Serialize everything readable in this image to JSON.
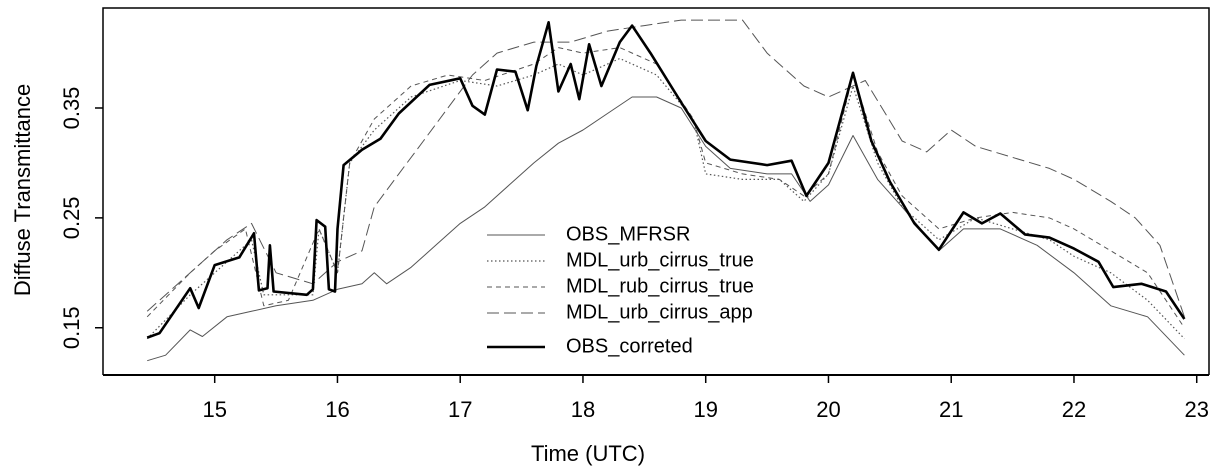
{
  "chart_data": {
    "type": "line",
    "xlabel": "Time (UTC)",
    "ylabel": "Diffuse Transmittance",
    "xlim": [
      14.09,
      23.1
    ],
    "ylim": [
      0.107,
      0.441
    ],
    "xticks": [
      15,
      16,
      17,
      18,
      19,
      20,
      21,
      22,
      23
    ],
    "yticks": [
      0.15,
      0.25,
      0.35
    ],
    "series": [
      {
        "name": "OBS_MFRSR",
        "color": "#555555",
        "linestyle": "solid",
        "x": [
          14.45,
          14.6,
          14.8,
          14.9,
          15.1,
          15.3,
          15.5,
          15.8,
          16.0,
          16.2,
          16.3,
          16.4,
          16.6,
          16.8,
          17.0,
          17.2,
          17.4,
          17.6,
          17.8,
          18.0,
          18.2,
          18.4,
          18.6,
          18.8,
          19.0,
          19.2,
          19.5,
          19.7,
          19.85,
          20.0,
          20.2,
          20.4,
          20.6,
          20.9,
          21.1,
          21.4,
          21.7,
          22.0,
          22.3,
          22.6,
          22.9
        ],
        "values": [
          0.12,
          0.125,
          0.148,
          0.142,
          0.16,
          0.165,
          0.17,
          0.175,
          0.185,
          0.19,
          0.2,
          0.19,
          0.205,
          0.225,
          0.245,
          0.26,
          0.28,
          0.3,
          0.318,
          0.33,
          0.345,
          0.36,
          0.36,
          0.35,
          0.315,
          0.295,
          0.29,
          0.29,
          0.265,
          0.28,
          0.325,
          0.285,
          0.26,
          0.22,
          0.24,
          0.24,
          0.225,
          0.2,
          0.17,
          0.16,
          0.125
        ]
      },
      {
        "name": "MDL_urb_cirrus_true",
        "color": "#555555",
        "linestyle": "dotted",
        "x": [
          14.45,
          14.8,
          15.0,
          15.3,
          15.4,
          15.8,
          15.85,
          16.0,
          16.1,
          16.3,
          16.6,
          17.0,
          17.3,
          17.6,
          17.8,
          18.0,
          18.3,
          18.6,
          18.9,
          19.0,
          19.3,
          19.6,
          19.8,
          20.0,
          20.2,
          20.4,
          20.6,
          20.9,
          21.2,
          21.5,
          21.8,
          22.0,
          22.3,
          22.6,
          22.9
        ],
        "values": [
          0.14,
          0.18,
          0.2,
          0.23,
          0.18,
          0.18,
          0.24,
          0.2,
          0.3,
          0.33,
          0.36,
          0.375,
          0.37,
          0.38,
          0.39,
          0.38,
          0.395,
          0.38,
          0.34,
          0.29,
          0.285,
          0.285,
          0.265,
          0.29,
          0.37,
          0.3,
          0.26,
          0.23,
          0.25,
          0.24,
          0.23,
          0.215,
          0.2,
          0.175,
          0.14
        ]
      },
      {
        "name": "MDL_rub_cirrus_true",
        "color": "#555555",
        "linestyle": "dashed",
        "x": [
          14.45,
          14.8,
          15.0,
          15.25,
          15.4,
          15.6,
          15.85,
          16.0,
          16.1,
          16.3,
          16.6,
          16.9,
          17.2,
          17.6,
          17.8,
          18.0,
          18.3,
          18.6,
          18.9,
          19.0,
          19.3,
          19.6,
          19.8,
          20.0,
          20.2,
          20.4,
          20.6,
          20.9,
          21.2,
          21.5,
          21.8,
          22.0,
          22.3,
          22.6,
          22.9
        ],
        "values": [
          0.16,
          0.2,
          0.22,
          0.24,
          0.17,
          0.175,
          0.24,
          0.2,
          0.3,
          0.34,
          0.37,
          0.38,
          0.375,
          0.39,
          0.405,
          0.4,
          0.405,
          0.39,
          0.34,
          0.3,
          0.29,
          0.285,
          0.27,
          0.29,
          0.38,
          0.31,
          0.27,
          0.24,
          0.25,
          0.255,
          0.25,
          0.24,
          0.22,
          0.2,
          0.15
        ]
      },
      {
        "name": "MDL_urb_cirrus_app",
        "color": "#555555",
        "linestyle": "longdash",
        "x": [
          14.45,
          14.8,
          15.1,
          15.3,
          15.5,
          15.8,
          16.0,
          16.2,
          16.3,
          16.5,
          16.7,
          16.9,
          17.1,
          17.3,
          17.6,
          17.9,
          18.2,
          18.5,
          18.8,
          19.0,
          19.3,
          19.5,
          19.8,
          20.0,
          20.3,
          20.6,
          20.8,
          21.0,
          21.2,
          21.5,
          21.8,
          22.0,
          22.3,
          22.5,
          22.7,
          22.9
        ],
        "values": [
          0.165,
          0.2,
          0.23,
          0.245,
          0.2,
          0.19,
          0.21,
          0.22,
          0.26,
          0.29,
          0.32,
          0.35,
          0.38,
          0.4,
          0.41,
          0.41,
          0.42,
          0.425,
          0.43,
          0.43,
          0.43,
          0.4,
          0.37,
          0.36,
          0.375,
          0.32,
          0.31,
          0.33,
          0.315,
          0.305,
          0.295,
          0.285,
          0.265,
          0.25,
          0.225,
          0.16
        ]
      },
      {
        "name": "OBS_correted",
        "color": "#000000",
        "linestyle": "bold",
        "x": [
          14.45,
          14.55,
          14.8,
          14.87,
          15.0,
          15.2,
          15.32,
          15.36,
          15.43,
          15.45,
          15.48,
          15.75,
          15.8,
          15.83,
          15.9,
          15.93,
          15.98,
          16.0,
          16.05,
          16.2,
          16.35,
          16.5,
          16.75,
          17.0,
          17.1,
          17.2,
          17.3,
          17.45,
          17.55,
          17.62,
          17.72,
          17.8,
          17.9,
          17.97,
          18.05,
          18.15,
          18.3,
          18.4,
          18.55,
          18.8,
          19.0,
          19.2,
          19.5,
          19.7,
          19.82,
          20.0,
          20.2,
          20.35,
          20.5,
          20.7,
          20.9,
          21.1,
          21.25,
          21.4,
          21.6,
          21.8,
          22.0,
          22.2,
          22.32,
          22.55,
          22.75,
          22.9
        ],
        "values": [
          0.141,
          0.145,
          0.186,
          0.168,
          0.207,
          0.214,
          0.236,
          0.184,
          0.186,
          0.225,
          0.183,
          0.18,
          0.185,
          0.248,
          0.242,
          0.185,
          0.183,
          0.24,
          0.298,
          0.312,
          0.322,
          0.345,
          0.371,
          0.377,
          0.352,
          0.344,
          0.385,
          0.383,
          0.348,
          0.388,
          0.428,
          0.365,
          0.39,
          0.358,
          0.408,
          0.37,
          0.41,
          0.425,
          0.4,
          0.355,
          0.32,
          0.303,
          0.298,
          0.302,
          0.27,
          0.3,
          0.382,
          0.32,
          0.283,
          0.245,
          0.221,
          0.255,
          0.245,
          0.254,
          0.235,
          0.232,
          0.222,
          0.21,
          0.187,
          0.19,
          0.183,
          0.158
        ]
      }
    ]
  }
}
